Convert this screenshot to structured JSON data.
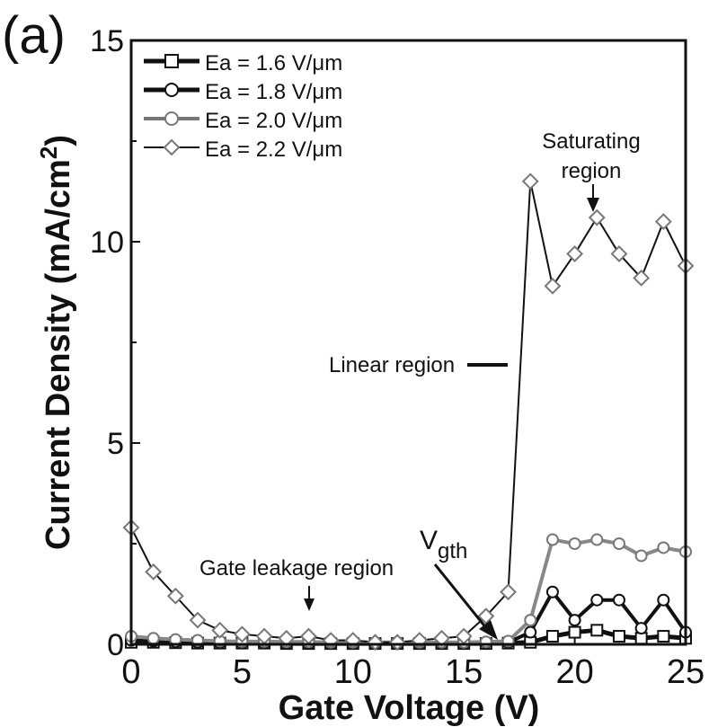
{
  "panel_label": "(a)",
  "chart_data": {
    "type": "line",
    "xlabel": "Gate Voltage (V)",
    "ylabel_text": "Current Density (mA/cm",
    "ylabel_sup": "2",
    "ylabel_close": ")",
    "xlim": [
      0,
      25
    ],
    "ylim": [
      0,
      15
    ],
    "xticks": [
      0,
      5,
      10,
      15,
      20,
      25
    ],
    "yticks": [
      0,
      5,
      10,
      15
    ],
    "grid": false,
    "legend_position": "top-left",
    "x": [
      0,
      1,
      2,
      3,
      4,
      5,
      6,
      7,
      8,
      9,
      10,
      11,
      12,
      13,
      14,
      15,
      16,
      17,
      18,
      19,
      20,
      21,
      22,
      23,
      24,
      25
    ],
    "series": [
      {
        "name": "Ea = 1.6 V/μm",
        "marker": "square",
        "values": [
          0.05,
          0.05,
          0.04,
          0.03,
          0.03,
          0.03,
          0.03,
          0.02,
          0.02,
          0.02,
          0.02,
          0.02,
          0.02,
          0.02,
          0.02,
          0.02,
          0.02,
          0.03,
          0.05,
          0.2,
          0.3,
          0.35,
          0.2,
          0.15,
          0.2,
          0.15
        ]
      },
      {
        "name": "Ea = 1.8 V/μm",
        "marker": "circle",
        "values": [
          0.1,
          0.08,
          0.06,
          0.05,
          0.04,
          0.04,
          0.04,
          0.03,
          0.03,
          0.03,
          0.03,
          0.03,
          0.03,
          0.03,
          0.03,
          0.03,
          0.04,
          0.05,
          0.3,
          1.3,
          0.6,
          1.1,
          1.1,
          0.4,
          1.1,
          0.3
        ]
      },
      {
        "name": "Ea = 2.0 V/μm",
        "marker": "circle",
        "values": [
          0.2,
          0.15,
          0.12,
          0.1,
          0.08,
          0.07,
          0.07,
          0.06,
          0.06,
          0.05,
          0.05,
          0.05,
          0.05,
          0.05,
          0.05,
          0.05,
          0.06,
          0.08,
          0.6,
          2.6,
          2.5,
          2.6,
          2.5,
          2.2,
          2.4,
          2.3
        ]
      },
      {
        "name": "Ea = 2.2 V/μm",
        "marker": "diamond",
        "values": [
          2.9,
          1.8,
          1.2,
          0.6,
          0.35,
          0.25,
          0.2,
          0.15,
          0.2,
          0.1,
          0.1,
          0.05,
          0.05,
          0.1,
          0.15,
          0.2,
          0.7,
          1.3,
          11.5,
          8.9,
          9.7,
          10.6,
          9.7,
          9.1,
          10.5,
          9.4
        ]
      }
    ],
    "annotations": [
      {
        "id": "saturating",
        "lines": [
          "Saturating",
          "region"
        ]
      },
      {
        "id": "linear",
        "text": "Linear region"
      },
      {
        "id": "vgth",
        "main": "V",
        "sub": "gth"
      },
      {
        "id": "leakage",
        "text": "Gate leakage region"
      }
    ]
  }
}
